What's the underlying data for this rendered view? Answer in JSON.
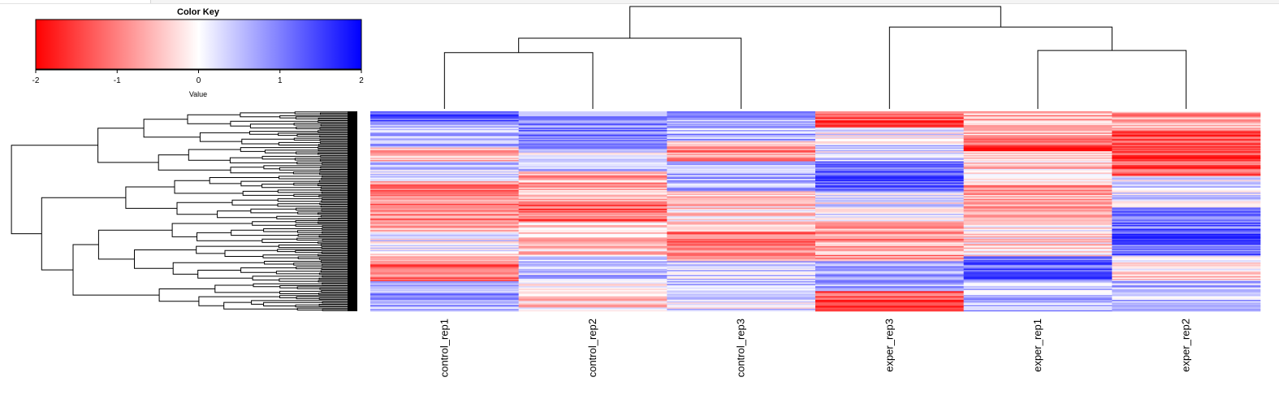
{
  "chart_data": {
    "type": "heatmap",
    "color_key": {
      "title": "Color Key",
      "label": "Value",
      "ticks": [
        "-2",
        "-1",
        "0",
        "1",
        "2"
      ],
      "range": [
        -2,
        2
      ],
      "low_color": "#ff0000",
      "mid_color": "#ffffff",
      "high_color": "#0000ff"
    },
    "columns": [
      "control_rep1",
      "control_rep2",
      "control_rep3",
      "exper_rep3",
      "exper_rep1",
      "exper_rep2"
    ],
    "column_dendrogram": {
      "merges": [
        {
          "left": "control_rep1",
          "right": "control_rep2",
          "height": 0.55
        },
        {
          "left": "exper_rep1",
          "right": "exper_rep2",
          "height": 0.57
        },
        {
          "left": "(control_rep1,control_rep2)",
          "right": "control_rep3",
          "height": 0.69
        },
        {
          "left": "exper_rep3",
          "right": "(exper_rep1,exper_rep2)",
          "height": 0.8
        },
        {
          "left": "controls",
          "right": "experiments",
          "height": 1.0
        }
      ]
    },
    "row_dendrogram": true,
    "rows": 160,
    "grid": false
  }
}
